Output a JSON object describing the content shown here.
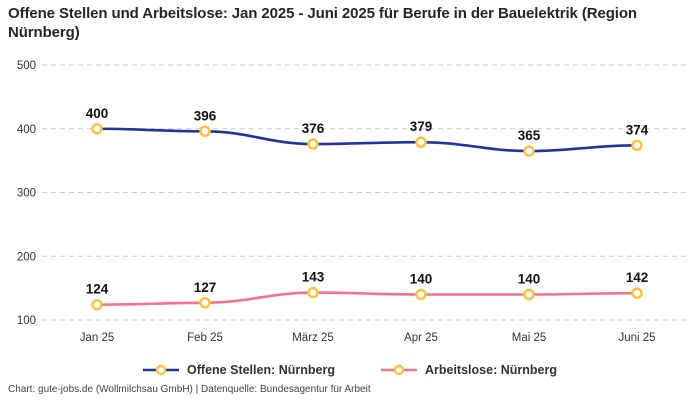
{
  "chart_data": {
    "type": "line",
    "title": "Offene Stellen und Arbeitslose: Jan 2025 - Juni 2025 für Berufe in der Bauelektrik (Region Nürnberg)",
    "categories": [
      "Jan 25",
      "Feb 25",
      "März 25",
      "Apr 25",
      "Mai 25",
      "Juni 25"
    ],
    "series": [
      {
        "name": "Offene Stellen: Nürnberg",
        "values": [
          400,
          396,
          376,
          379,
          365,
          374
        ],
        "color": "#21339E"
      },
      {
        "name": "Arbeitslose: Nürnberg",
        "values": [
          124,
          127,
          143,
          140,
          140,
          142
        ],
        "color": "#F8718C"
      }
    ],
    "marker_color": "#FFC23C",
    "marker_fill": "#FFFFFF",
    "yticks": [
      100,
      200,
      300,
      400,
      500
    ],
    "ylim": [
      100,
      500
    ],
    "xlabel": "",
    "ylabel": "",
    "grid": "horizontal-dashed",
    "legend_position": "bottom"
  },
  "colors": {
    "grid": "#CCCCCC",
    "axis_text": "#333333",
    "data_label": "#111111",
    "title_text": "#262626",
    "legend_text": "#333333",
    "footer_text": "#444444"
  },
  "footer": {
    "text": "Chart: gute-jobs.de (Wollmilchsau GmbH) | Datenquelle: Bundesagentur für Arbeit"
  }
}
